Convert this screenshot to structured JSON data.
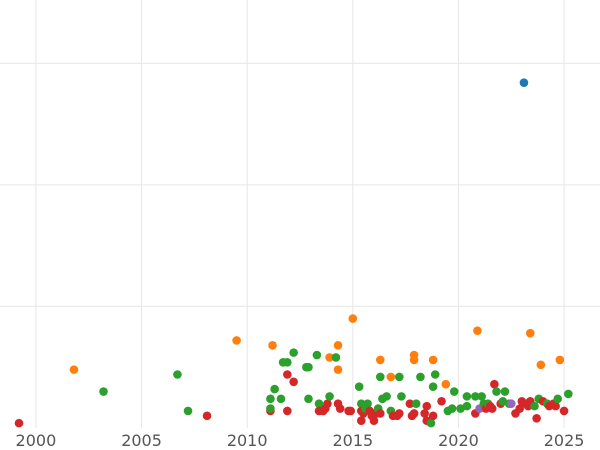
{
  "chart_data": {
    "type": "scatter",
    "title": "",
    "xlabel": "",
    "ylabel": "",
    "xlim": [
      1998.3,
      2026.7
    ],
    "ylim": [
      0,
      8.8
    ],
    "x_ticks": [
      2000,
      2005,
      2010,
      2015,
      2020,
      2025
    ],
    "x_tick_labels": [
      "2000",
      "2005",
      "2010",
      "2015",
      "2020",
      "2025"
    ],
    "y_gridlines": [
      2.5,
      5,
      7.5
    ],
    "grid": true,
    "legend": "none",
    "colors": {
      "blue": "#1f77b4",
      "orange": "#ff7f0e",
      "green": "#2ca02c",
      "red": "#d62728",
      "purple": "#9467bd"
    },
    "points": [
      {
        "x": 1999.2,
        "y": 0.1,
        "color": "red"
      },
      {
        "x": 2001.8,
        "y": 1.2,
        "color": "orange"
      },
      {
        "x": 2003.2,
        "y": 0.75,
        "color": "green"
      },
      {
        "x": 2006.7,
        "y": 1.1,
        "color": "green"
      },
      {
        "x": 2007.2,
        "y": 0.35,
        "color": "green"
      },
      {
        "x": 2008.1,
        "y": 0.25,
        "color": "red"
      },
      {
        "x": 2009.5,
        "y": 1.8,
        "color": "orange"
      },
      {
        "x": 2011.2,
        "y": 1.7,
        "color": "orange"
      },
      {
        "x": 2011.3,
        "y": 0.8,
        "color": "green"
      },
      {
        "x": 2011.1,
        "y": 0.6,
        "color": "green"
      },
      {
        "x": 2011.1,
        "y": 0.35,
        "color": "red"
      },
      {
        "x": 2011.1,
        "y": 0.4,
        "color": "green"
      },
      {
        "x": 2011.7,
        "y": 1.35,
        "color": "green"
      },
      {
        "x": 2011.9,
        "y": 1.35,
        "color": "green"
      },
      {
        "x": 2011.6,
        "y": 0.6,
        "color": "green"
      },
      {
        "x": 2011.9,
        "y": 1.1,
        "color": "red"
      },
      {
        "x": 2011.9,
        "y": 0.35,
        "color": "red"
      },
      {
        "x": 2012.2,
        "y": 1.55,
        "color": "green"
      },
      {
        "x": 2012.2,
        "y": 0.95,
        "color": "red"
      },
      {
        "x": 2012.8,
        "y": 1.25,
        "color": "green"
      },
      {
        "x": 2012.9,
        "y": 1.25,
        "color": "green"
      },
      {
        "x": 2012.9,
        "y": 0.6,
        "color": "green"
      },
      {
        "x": 2013.3,
        "y": 1.5,
        "color": "green"
      },
      {
        "x": 2013.4,
        "y": 0.5,
        "color": "green"
      },
      {
        "x": 2013.4,
        "y": 0.35,
        "color": "red"
      },
      {
        "x": 2013.6,
        "y": 0.35,
        "color": "red"
      },
      {
        "x": 2013.7,
        "y": 0.4,
        "color": "red"
      },
      {
        "x": 2013.8,
        "y": 0.5,
        "color": "red"
      },
      {
        "x": 2013.9,
        "y": 0.65,
        "color": "green"
      },
      {
        "x": 2013.9,
        "y": 1.45,
        "color": "orange"
      },
      {
        "x": 2014.2,
        "y": 1.45,
        "color": "green"
      },
      {
        "x": 2014.3,
        "y": 1.7,
        "color": "orange"
      },
      {
        "x": 2014.3,
        "y": 1.2,
        "color": "orange"
      },
      {
        "x": 2014.3,
        "y": 0.5,
        "color": "red"
      },
      {
        "x": 2014.4,
        "y": 0.4,
        "color": "red"
      },
      {
        "x": 2014.8,
        "y": 0.35,
        "color": "red"
      },
      {
        "x": 2014.9,
        "y": 0.35,
        "color": "red"
      },
      {
        "x": 2015.0,
        "y": 2.25,
        "color": "orange"
      },
      {
        "x": 2015.3,
        "y": 0.85,
        "color": "green"
      },
      {
        "x": 2015.4,
        "y": 0.5,
        "color": "green"
      },
      {
        "x": 2015.4,
        "y": 0.35,
        "color": "red"
      },
      {
        "x": 2015.5,
        "y": 0.3,
        "color": "red"
      },
      {
        "x": 2015.4,
        "y": 0.15,
        "color": "red"
      },
      {
        "x": 2015.6,
        "y": 0.4,
        "color": "green"
      },
      {
        "x": 2015.7,
        "y": 0.5,
        "color": "green"
      },
      {
        "x": 2015.8,
        "y": 0.35,
        "color": "red"
      },
      {
        "x": 2015.9,
        "y": 0.25,
        "color": "red"
      },
      {
        "x": 2016.0,
        "y": 0.15,
        "color": "red"
      },
      {
        "x": 2016.1,
        "y": 0.3,
        "color": "red"
      },
      {
        "x": 2016.2,
        "y": 0.4,
        "color": "green"
      },
      {
        "x": 2016.3,
        "y": 0.3,
        "color": "red"
      },
      {
        "x": 2016.3,
        "y": 1.4,
        "color": "orange"
      },
      {
        "x": 2016.3,
        "y": 1.05,
        "color": "green"
      },
      {
        "x": 2016.4,
        "y": 0.6,
        "color": "green"
      },
      {
        "x": 2016.6,
        "y": 0.65,
        "color": "green"
      },
      {
        "x": 2016.8,
        "y": 1.05,
        "color": "orange"
      },
      {
        "x": 2016.8,
        "y": 0.35,
        "color": "green"
      },
      {
        "x": 2016.9,
        "y": 0.25,
        "color": "red"
      },
      {
        "x": 2017.1,
        "y": 0.25,
        "color": "red"
      },
      {
        "x": 2017.2,
        "y": 1.05,
        "color": "green"
      },
      {
        "x": 2017.2,
        "y": 0.3,
        "color": "red"
      },
      {
        "x": 2017.3,
        "y": 0.65,
        "color": "green"
      },
      {
        "x": 2017.7,
        "y": 0.5,
        "color": "red"
      },
      {
        "x": 2017.8,
        "y": 0.25,
        "color": "red"
      },
      {
        "x": 2017.9,
        "y": 0.3,
        "color": "red"
      },
      {
        "x": 2017.9,
        "y": 1.5,
        "color": "orange"
      },
      {
        "x": 2017.9,
        "y": 1.4,
        "color": "orange"
      },
      {
        "x": 2018.0,
        "y": 0.5,
        "color": "green"
      },
      {
        "x": 2018.2,
        "y": 1.05,
        "color": "green"
      },
      {
        "x": 2018.4,
        "y": 0.3,
        "color": "red"
      },
      {
        "x": 2018.5,
        "y": 0.45,
        "color": "red"
      },
      {
        "x": 2018.5,
        "y": 0.15,
        "color": "red"
      },
      {
        "x": 2018.7,
        "y": 0.1,
        "color": "green"
      },
      {
        "x": 2018.8,
        "y": 0.25,
        "color": "red"
      },
      {
        "x": 2018.9,
        "y": 1.1,
        "color": "green"
      },
      {
        "x": 2018.8,
        "y": 0.85,
        "color": "green"
      },
      {
        "x": 2018.8,
        "y": 1.4,
        "color": "orange"
      },
      {
        "x": 2019.2,
        "y": 0.55,
        "color": "red"
      },
      {
        "x": 2019.4,
        "y": 0.9,
        "color": "orange"
      },
      {
        "x": 2019.5,
        "y": 0.35,
        "color": "green"
      },
      {
        "x": 2019.7,
        "y": 0.4,
        "color": "green"
      },
      {
        "x": 2019.8,
        "y": 0.75,
        "color": "green"
      },
      {
        "x": 2020.1,
        "y": 0.4,
        "color": "green"
      },
      {
        "x": 2020.4,
        "y": 0.45,
        "color": "green"
      },
      {
        "x": 2020.4,
        "y": 0.65,
        "color": "green"
      },
      {
        "x": 2020.8,
        "y": 0.3,
        "color": "red"
      },
      {
        "x": 2020.8,
        "y": 0.65,
        "color": "green"
      },
      {
        "x": 2020.9,
        "y": 2.0,
        "color": "orange"
      },
      {
        "x": 2021.0,
        "y": 0.4,
        "color": "purple"
      },
      {
        "x": 2021.1,
        "y": 0.65,
        "color": "green"
      },
      {
        "x": 2021.2,
        "y": 0.5,
        "color": "green"
      },
      {
        "x": 2021.3,
        "y": 0.4,
        "color": "red"
      },
      {
        "x": 2021.4,
        "y": 0.5,
        "color": "green"
      },
      {
        "x": 2021.5,
        "y": 0.45,
        "color": "red"
      },
      {
        "x": 2021.6,
        "y": 0.4,
        "color": "red"
      },
      {
        "x": 2021.7,
        "y": 0.9,
        "color": "red"
      },
      {
        "x": 2021.8,
        "y": 0.75,
        "color": "green"
      },
      {
        "x": 2022.0,
        "y": 0.5,
        "color": "red"
      },
      {
        "x": 2022.1,
        "y": 0.55,
        "color": "green"
      },
      {
        "x": 2022.2,
        "y": 0.75,
        "color": "green"
      },
      {
        "x": 2022.4,
        "y": 0.5,
        "color": "green"
      },
      {
        "x": 2022.5,
        "y": 0.5,
        "color": "purple"
      },
      {
        "x": 2022.7,
        "y": 0.3,
        "color": "red"
      },
      {
        "x": 2022.9,
        "y": 0.4,
        "color": "red"
      },
      {
        "x": 2023.0,
        "y": 0.55,
        "color": "red"
      },
      {
        "x": 2023.1,
        "y": 7.1,
        "color": "blue"
      },
      {
        "x": 2023.2,
        "y": 0.5,
        "color": "red"
      },
      {
        "x": 2023.3,
        "y": 0.45,
        "color": "red"
      },
      {
        "x": 2023.4,
        "y": 0.55,
        "color": "red"
      },
      {
        "x": 2023.4,
        "y": 1.95,
        "color": "orange"
      },
      {
        "x": 2023.6,
        "y": 0.45,
        "color": "green"
      },
      {
        "x": 2023.7,
        "y": 0.2,
        "color": "red"
      },
      {
        "x": 2023.8,
        "y": 0.6,
        "color": "green"
      },
      {
        "x": 2023.9,
        "y": 1.3,
        "color": "orange"
      },
      {
        "x": 2024.0,
        "y": 0.55,
        "color": "red"
      },
      {
        "x": 2024.2,
        "y": 0.5,
        "color": "green"
      },
      {
        "x": 2024.3,
        "y": 0.45,
        "color": "red"
      },
      {
        "x": 2024.5,
        "y": 0.5,
        "color": "red"
      },
      {
        "x": 2024.6,
        "y": 0.45,
        "color": "red"
      },
      {
        "x": 2024.7,
        "y": 0.6,
        "color": "green"
      },
      {
        "x": 2024.8,
        "y": 1.4,
        "color": "orange"
      },
      {
        "x": 2025.0,
        "y": 0.35,
        "color": "red"
      },
      {
        "x": 2025.2,
        "y": 0.7,
        "color": "green"
      }
    ]
  }
}
